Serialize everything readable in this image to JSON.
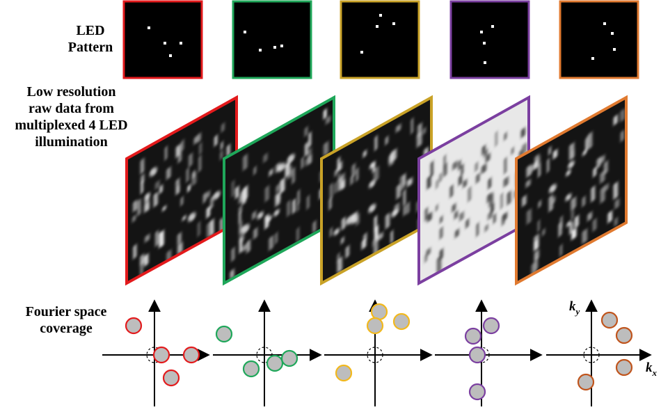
{
  "labels": {
    "led_pattern": "LED\nPattern",
    "raw_data": "Low resolution\nraw data from\nmultiplexed 4 LED\nillumination",
    "fourier": "Fourier space\ncoverage",
    "ky_base": "k",
    "ky_sub": "y",
    "kx_base": "k",
    "kx_sub": "x"
  },
  "colors": [
    "#e31a1c",
    "#1fa75a",
    "#c9a227",
    "#7b3fa0",
    "#e07a30"
  ],
  "fourier_stroke": [
    "#e31a1c",
    "#1fa75a",
    "#f2b81c",
    "#7b3fa0",
    "#c0541c"
  ],
  "raw_styles": [
    "dark",
    "dark",
    "dark",
    "light",
    "dark"
  ]
}
